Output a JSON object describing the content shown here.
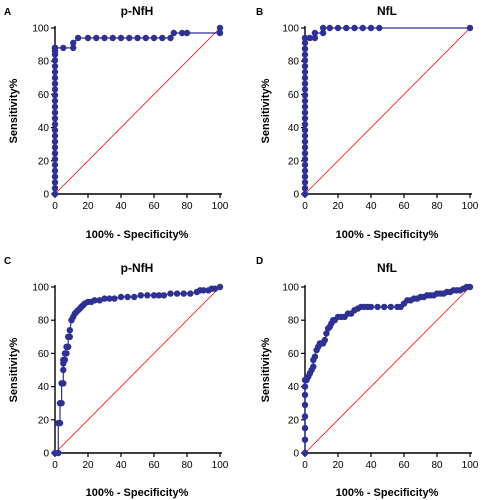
{
  "figure": {
    "background": "#ffffff",
    "curve_color": "#2e3192",
    "marker_color": "#2e3192",
    "reference_line_color": "#ff0000",
    "axis_color": "#000000"
  },
  "chart_data": [
    {
      "type": "line",
      "panel_letter": "A",
      "title": "p-NfH",
      "xlabel": "100% - Specificity%",
      "ylabel": "Sensitivity%",
      "xlim": [
        0,
        100
      ],
      "ylim": [
        0,
        100
      ],
      "x_ticks": [
        "0",
        "20",
        "40",
        "60",
        "80",
        "100"
      ],
      "y_ticks": [
        "0",
        "20",
        "40",
        "60",
        "80",
        "100"
      ],
      "reference_line": [
        [
          0,
          0
        ],
        [
          100,
          100
        ]
      ],
      "series": [
        {
          "x": [
            0,
            0,
            0,
            0,
            0,
            0,
            0,
            0,
            0,
            0,
            0,
            0,
            0,
            0,
            0,
            0,
            0,
            0,
            0,
            0,
            0,
            0,
            0,
            0,
            0,
            0,
            0,
            0,
            0,
            0,
            5,
            11,
            11,
            14,
            20,
            25,
            30,
            35,
            40,
            45,
            50,
            55,
            60,
            65,
            70,
            72,
            77,
            80,
            100,
            100
          ],
          "y": [
            0,
            3.5,
            7,
            10.5,
            14,
            17.5,
            21,
            24.5,
            28,
            31.5,
            35,
            38.5,
            42,
            45.5,
            49,
            52.5,
            56,
            59.5,
            63,
            66.5,
            70,
            73.5,
            77,
            80.5,
            84,
            86,
            88,
            88,
            88,
            88,
            88,
            88,
            91,
            94,
            94,
            94,
            94,
            94,
            94,
            94,
            94,
            94,
            94,
            94,
            94,
            97,
            97,
            97,
            97,
            100
          ]
        }
      ]
    },
    {
      "type": "line",
      "panel_letter": "B",
      "title": "NfL",
      "xlabel": "100% - Specificity%",
      "ylabel": "Sensitivity%",
      "xlim": [
        0,
        100
      ],
      "ylim": [
        0,
        100
      ],
      "x_ticks": [
        "0",
        "20",
        "40",
        "60",
        "80",
        "100"
      ],
      "y_ticks": [
        "0",
        "20",
        "40",
        "60",
        "80",
        "100"
      ],
      "reference_line": [
        [
          0,
          0
        ],
        [
          100,
          100
        ]
      ],
      "series": [
        {
          "x": [
            0,
            0,
            0,
            0,
            0,
            0,
            0,
            0,
            0,
            0,
            0,
            0,
            0,
            0,
            0,
            0,
            0,
            0,
            0,
            0,
            0,
            0,
            0,
            0,
            0,
            0,
            0,
            0,
            3,
            6,
            6,
            11,
            11,
            15,
            20,
            25,
            30,
            35,
            40,
            45,
            100
          ],
          "y": [
            0,
            3.5,
            7,
            10.5,
            14,
            17.5,
            21,
            24.5,
            28,
            31.5,
            35,
            38.5,
            42,
            45.5,
            49,
            52.5,
            56,
            59.5,
            63,
            66.5,
            70,
            73.5,
            77,
            80.5,
            84,
            87.5,
            91,
            94,
            94,
            94,
            97,
            97,
            100,
            100,
            100,
            100,
            100,
            100,
            100,
            100,
            100
          ]
        }
      ]
    },
    {
      "type": "line",
      "panel_letter": "C",
      "title": "p-NfH",
      "xlabel": "100% - Specificity%",
      "ylabel": "Sensitivity%",
      "xlim": [
        0,
        100
      ],
      "ylim": [
        0,
        100
      ],
      "x_ticks": [
        "0",
        "20",
        "40",
        "60",
        "80",
        "100"
      ],
      "y_ticks": [
        "0",
        "20",
        "40",
        "60",
        "80",
        "100"
      ],
      "reference_line": [
        [
          0,
          0
        ],
        [
          100,
          100
        ]
      ],
      "series": [
        {
          "x": [
            0,
            2,
            2,
            3,
            3,
            4,
            4,
            5,
            5,
            5,
            5,
            6,
            6,
            7,
            7,
            8,
            8,
            9,
            9,
            10,
            11,
            12,
            13,
            14,
            15,
            16,
            17,
            18,
            20,
            22,
            24,
            27,
            30,
            33,
            36,
            40,
            44,
            48,
            52,
            56,
            60,
            63,
            66,
            70,
            74,
            78,
            82,
            86,
            88,
            90,
            93,
            95,
            97,
            100
          ],
          "y": [
            0,
            0,
            18,
            18,
            30,
            30,
            42,
            42,
            50,
            54,
            56,
            56,
            60,
            60,
            64,
            64,
            70,
            70,
            74,
            80,
            82,
            84,
            85,
            86,
            87,
            88,
            89,
            90,
            91,
            91,
            92,
            92,
            93,
            93,
            93,
            94,
            94,
            94,
            95,
            95,
            95,
            95,
            95,
            96,
            96,
            96,
            96,
            97,
            98,
            98,
            98,
            99,
            99,
            100
          ]
        }
      ]
    },
    {
      "type": "line",
      "panel_letter": "D",
      "title": "NfL",
      "xlabel": "100% - Specificity%",
      "ylabel": "Sensitivity%",
      "xlim": [
        0,
        100
      ],
      "ylim": [
        0,
        100
      ],
      "x_ticks": [
        "0",
        "20",
        "40",
        "60",
        "80",
        "100"
      ],
      "y_ticks": [
        "0",
        "20",
        "40",
        "60",
        "80",
        "100"
      ],
      "reference_line": [
        [
          0,
          0
        ],
        [
          100,
          100
        ]
      ],
      "series": [
        {
          "x": [
            0,
            0,
            0,
            0,
            0,
            0,
            0,
            0,
            1,
            2,
            3,
            4,
            5,
            5,
            6,
            7,
            8,
            9,
            10,
            11,
            12,
            13,
            14,
            15,
            16,
            17,
            18,
            20,
            22,
            24,
            26,
            28,
            30,
            32,
            34,
            36,
            38,
            40,
            44,
            48,
            52,
            56,
            58,
            60,
            62,
            64,
            66,
            68,
            70,
            72,
            74,
            76,
            78,
            80,
            82,
            84,
            86,
            88,
            90,
            92,
            94,
            96,
            98,
            100
          ],
          "y": [
            0,
            8,
            15,
            22,
            29,
            35,
            40,
            44,
            44,
            46,
            48,
            50,
            52,
            56,
            58,
            62,
            64,
            66,
            66,
            66,
            68,
            72,
            75,
            76,
            78,
            80,
            80,
            82,
            82,
            82,
            84,
            84,
            86,
            87,
            88,
            88,
            88,
            88,
            88,
            88,
            88,
            88,
            88,
            90,
            92,
            92,
            93,
            93,
            94,
            94,
            95,
            95,
            95,
            96,
            96,
            96,
            97,
            97,
            98,
            98,
            98,
            99,
            100,
            100
          ]
        }
      ]
    }
  ]
}
